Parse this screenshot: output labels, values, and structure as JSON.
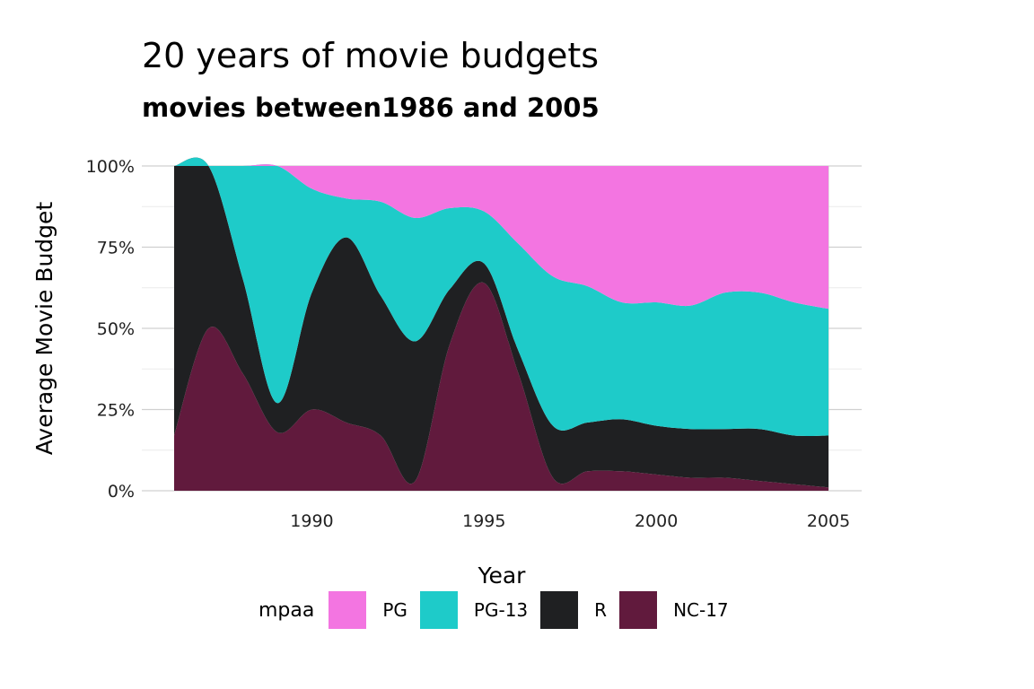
{
  "chart_data": {
    "type": "area",
    "stacked": true,
    "normalized": true,
    "title": "20 years of movie budgets",
    "subtitle": "movies between1986 and 2005",
    "xlabel": "Year",
    "ylabel": "Average Movie Budget",
    "xlim": [
      1986,
      2005
    ],
    "ylim": [
      0,
      1
    ],
    "x_ticks": [
      1990,
      1995,
      2000,
      2005
    ],
    "y_ticks": [
      "0%",
      "25%",
      "50%",
      "75%",
      "100%"
    ],
    "legend": {
      "title": "mpaa",
      "position": "bottom"
    },
    "x": [
      1986,
      1987,
      1988,
      1989,
      1990,
      1991,
      1992,
      1993,
      1994,
      1995,
      1996,
      1997,
      1998,
      1999,
      2000,
      2001,
      2002,
      2003,
      2004,
      2005
    ],
    "series": [
      {
        "name": "NC-17",
        "color": "#611A3D",
        "values": [
          0.17,
          0.5,
          0.36,
          0.18,
          0.25,
          0.21,
          0.17,
          0.03,
          0.45,
          0.64,
          0.36,
          0.04,
          0.06,
          0.06,
          0.05,
          0.04,
          0.04,
          0.03,
          0.02,
          0.01
        ]
      },
      {
        "name": "R",
        "color": "#1F2022",
        "values": [
          0.83,
          0.5,
          0.29,
          0.09,
          0.36,
          0.57,
          0.43,
          0.43,
          0.17,
          0.06,
          0.07,
          0.16,
          0.15,
          0.16,
          0.15,
          0.15,
          0.15,
          0.16,
          0.15,
          0.16
        ]
      },
      {
        "name": "PG-13",
        "color": "#1ECBC9",
        "values": [
          0.0,
          0.0,
          0.35,
          0.73,
          0.32,
          0.12,
          0.29,
          0.38,
          0.25,
          0.16,
          0.33,
          0.46,
          0.42,
          0.36,
          0.38,
          0.38,
          0.42,
          0.42,
          0.41,
          0.39
        ]
      },
      {
        "name": "PG",
        "color": "#F375E1",
        "values": [
          0.0,
          0.0,
          0.0,
          0.0,
          0.07,
          0.1,
          0.11,
          0.16,
          0.13,
          0.14,
          0.24,
          0.34,
          0.37,
          0.42,
          0.42,
          0.43,
          0.39,
          0.39,
          0.42,
          0.44
        ]
      }
    ]
  },
  "legend_order": [
    "PG",
    "PG-13",
    "R",
    "NC-17"
  ]
}
